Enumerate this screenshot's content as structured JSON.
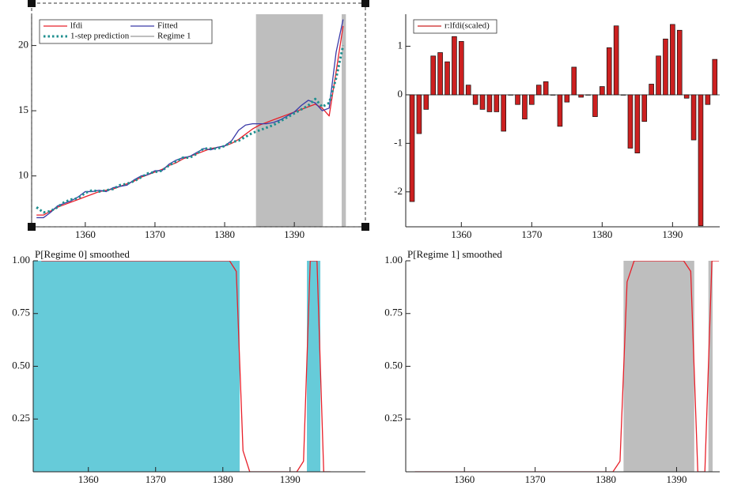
{
  "chart_data": [
    {
      "type": "line",
      "x": [
        1353,
        1354,
        1355,
        1356,
        1357,
        1358,
        1359,
        1360,
        1361,
        1362,
        1363,
        1364,
        1365,
        1366,
        1367,
        1368,
        1369,
        1370,
        1371,
        1372,
        1373,
        1374,
        1375,
        1376,
        1377,
        1378,
        1379,
        1380,
        1381,
        1382,
        1383,
        1384,
        1385,
        1386,
        1387,
        1388,
        1389,
        1390,
        1391,
        1392,
        1393,
        1394,
        1395,
        1396,
        1397
      ],
      "series": [
        {
          "name": "lfdi",
          "color": "#e8202a",
          "values": [
            7.0,
            7.0,
            7.3,
            7.6,
            7.8,
            8.0,
            8.2,
            8.4,
            8.6,
            8.8,
            8.9,
            9.0,
            9.2,
            9.4,
            9.6,
            9.9,
            10.1,
            10.3,
            10.5,
            10.8,
            11.0,
            11.3,
            11.5,
            11.7,
            11.9,
            12.1,
            12.2,
            12.3,
            12.5,
            12.8,
            13.2,
            13.6,
            13.9,
            14.1,
            14.3,
            14.5,
            14.7,
            14.9,
            15.1,
            15.3,
            15.5,
            15.2,
            14.6,
            18.0,
            21.5
          ]
        },
        {
          "name": "Fitted",
          "color": "#3a3aa8",
          "values": [
            6.8,
            6.8,
            7.2,
            7.7,
            7.9,
            8.1,
            8.4,
            8.8,
            8.8,
            8.9,
            8.8,
            9.1,
            9.2,
            9.3,
            9.7,
            10.0,
            10.1,
            10.4,
            10.4,
            10.9,
            11.2,
            11.4,
            11.5,
            11.8,
            12.1,
            12.0,
            12.2,
            12.3,
            12.7,
            13.5,
            13.9,
            14.0,
            14.0,
            14.0,
            14.1,
            14.3,
            14.6,
            14.9,
            15.4,
            15.8,
            15.6,
            15.0,
            15.2,
            19.5,
            22.0
          ]
        },
        {
          "name": "1-step prediction",
          "color": "#1f8f8f",
          "style": "dotted",
          "values": [
            7.6,
            7.2,
            7.3,
            7.6,
            8.0,
            8.2,
            8.3,
            8.7,
            8.9,
            8.8,
            8.9,
            9.0,
            9.3,
            9.4,
            9.6,
            9.9,
            10.2,
            10.3,
            10.4,
            10.8,
            11.1,
            11.4,
            11.4,
            11.7,
            12.1,
            12.1,
            12.1,
            12.3,
            12.6,
            12.7,
            13.0,
            13.3,
            13.5,
            13.7,
            13.9,
            14.2,
            14.5,
            14.8,
            15.1,
            15.4,
            15.9,
            15.3,
            15.6,
            17.5,
            20.0
          ]
        }
      ],
      "regions": {
        "name": "Regime 1",
        "color": "#bebebe",
        "spans": [
          [
            1384.5,
            1394.1
          ],
          [
            1396.8,
            1397.4
          ]
        ]
      },
      "xlim": [
        1352.3,
        1400.2
      ],
      "xticks": [
        1360,
        1370,
        1380,
        1390
      ],
      "ylim": [
        6.1,
        22.4
      ],
      "yticks": [
        10,
        15,
        20
      ],
      "grid": false,
      "legend": "upper left",
      "selected": true
    },
    {
      "type": "bar",
      "x": [
        1353,
        1354,
        1355,
        1356,
        1357,
        1358,
        1359,
        1360,
        1361,
        1362,
        1363,
        1364,
        1365,
        1366,
        1367,
        1368,
        1369,
        1370,
        1371,
        1372,
        1373,
        1374,
        1375,
        1376,
        1377,
        1378,
        1379,
        1380,
        1381,
        1382,
        1383,
        1384,
        1385,
        1386,
        1387,
        1388,
        1389,
        1390,
        1391,
        1392,
        1393,
        1394,
        1395,
        1396
      ],
      "series": [
        {
          "name": "r:lfdi(scaled)",
          "color": "#cc2020",
          "values": [
            -2.2,
            -0.8,
            -0.3,
            0.8,
            0.87,
            0.68,
            1.2,
            1.1,
            0.2,
            -0.2,
            -0.3,
            -0.35,
            -0.35,
            -0.75,
            0.0,
            -0.2,
            -0.5,
            -0.2,
            0.2,
            0.27,
            0.0,
            -0.65,
            -0.15,
            0.57,
            -0.05,
            0.0,
            -0.45,
            0.17,
            0.97,
            1.42,
            0.0,
            -1.1,
            -1.2,
            -0.55,
            0.22,
            0.8,
            1.15,
            1.45,
            1.33,
            -0.07,
            -0.93,
            -2.7,
            -0.2,
            0.73
          ]
        }
      ],
      "xlim": [
        1352.1,
        1396.7
      ],
      "xticks": [
        1360,
        1370,
        1380,
        1390
      ],
      "ylim": [
        -2.72,
        1.66
      ],
      "yticks": [
        -2,
        -1,
        0,
        1
      ],
      "grid": false,
      "legend": "upper left"
    },
    {
      "type": "line",
      "title": "P[Regime 0] smoothed",
      "x": [
        1353,
        1354,
        1355,
        1356,
        1357,
        1358,
        1359,
        1360,
        1361,
        1362,
        1363,
        1364,
        1365,
        1366,
        1367,
        1368,
        1369,
        1370,
        1371,
        1372,
        1373,
        1374,
        1375,
        1376,
        1377,
        1378,
        1379,
        1380,
        1381,
        1382,
        1383,
        1384,
        1385,
        1386,
        1387,
        1388,
        1389,
        1390,
        1391,
        1392,
        1393,
        1394,
        1395,
        1396
      ],
      "series": [
        {
          "color": "#e8202a",
          "values": [
            1,
            1,
            1,
            1,
            1,
            1,
            1,
            1,
            1,
            1,
            1,
            1,
            1,
            1,
            1,
            1,
            1,
            1,
            1,
            1,
            1,
            1,
            1,
            1,
            1,
            1,
            1,
            1,
            1,
            0.95,
            0.1,
            0,
            0,
            0,
            0,
            0,
            0,
            0,
            0,
            0.05,
            1,
            1,
            0,
            0
          ]
        }
      ],
      "regions": {
        "color": "#66cbd9",
        "spans": [
          [
            1351.8,
            1382.5
          ],
          [
            1392.5,
            1394.5
          ]
        ]
      },
      "xlim": [
        1351.8,
        1401.2
      ],
      "xticks": [
        1360,
        1370,
        1380,
        1390
      ],
      "ylim": [
        0,
        1
      ],
      "yticks": [
        0.25,
        {
          "value": 0.5,
          "label": "0.50"
        },
        0.75,
        {
          "value": 1,
          "label": "1.00"
        }
      ],
      "grid": false
    },
    {
      "type": "line",
      "title": "P[Regime 1] smoothed",
      "x": [
        1353,
        1354,
        1355,
        1356,
        1357,
        1358,
        1359,
        1360,
        1361,
        1362,
        1363,
        1364,
        1365,
        1366,
        1367,
        1368,
        1369,
        1370,
        1371,
        1372,
        1373,
        1374,
        1375,
        1376,
        1377,
        1378,
        1379,
        1380,
        1381,
        1382,
        1383,
        1384,
        1385,
        1386,
        1387,
        1388,
        1389,
        1390,
        1391,
        1392,
        1393,
        1394,
        1395,
        1396
      ],
      "series": [
        {
          "color": "#e8202a",
          "values": [
            0,
            0,
            0,
            0,
            0,
            0,
            0,
            0,
            0,
            0,
            0,
            0,
            0,
            0,
            0,
            0,
            0,
            0,
            0,
            0,
            0,
            0,
            0,
            0,
            0,
            0,
            0,
            0,
            0,
            0.05,
            0.9,
            1,
            1,
            1,
            1,
            1,
            1,
            1,
            1,
            0.95,
            0,
            0,
            1,
            1
          ]
        }
      ],
      "regions": {
        "color": "#bebebe",
        "spans": [
          [
            1382.5,
            1392.5
          ],
          [
            1394.5,
            1395.1
          ]
        ]
      },
      "xlim": [
        1351.7,
        1396.1
      ],
      "xticks": [
        1360,
        1370,
        1380,
        1390
      ],
      "ylim": [
        0,
        1
      ],
      "yticks": [
        0.25,
        {
          "value": 0.5,
          "label": "0.50"
        },
        0.75,
        {
          "value": 1,
          "label": "1.00"
        }
      ],
      "grid": false
    }
  ]
}
